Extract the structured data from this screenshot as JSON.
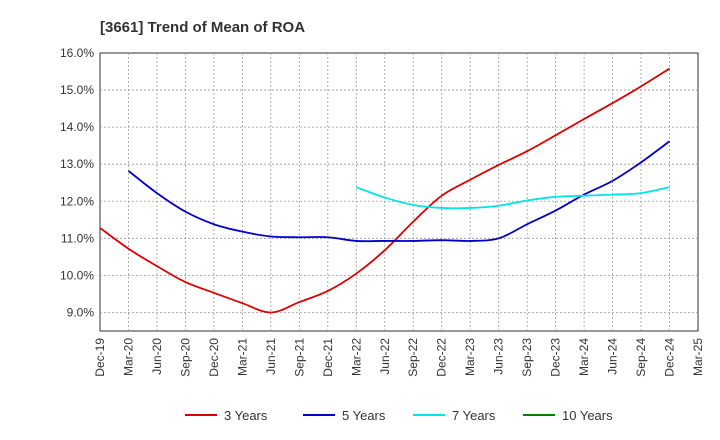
{
  "chart_data": {
    "type": "line",
    "title": "[3661]  Trend of Mean of ROA",
    "xlabel": "",
    "ylabel": "",
    "ylim": [
      8.5,
      16.0
    ],
    "yticks": [
      "9.0%",
      "10.0%",
      "11.0%",
      "12.0%",
      "13.0%",
      "14.0%",
      "15.0%",
      "16.0%"
    ],
    "categories": [
      "Dec-19",
      "Mar-20",
      "Jun-20",
      "Sep-20",
      "Dec-20",
      "Mar-21",
      "Jun-21",
      "Sep-21",
      "Dec-21",
      "Mar-22",
      "Jun-22",
      "Sep-22",
      "Dec-22",
      "Mar-23",
      "Jun-23",
      "Sep-23",
      "Dec-23",
      "Mar-24",
      "Jun-24",
      "Sep-24",
      "Dec-24",
      "Mar-25"
    ],
    "grid": true,
    "legend_position": "bottom",
    "series": [
      {
        "name": "3 Years",
        "color": "#dd0000",
        "values": [
          11.28,
          10.72,
          10.25,
          9.82,
          9.53,
          9.25,
          9.0,
          9.28,
          9.58,
          10.05,
          10.68,
          11.45,
          12.15,
          12.58,
          12.98,
          13.35,
          13.78,
          14.22,
          14.65,
          15.1,
          15.58,
          null
        ]
      },
      {
        "name": "5 Years",
        "color": "#0000cc",
        "values": [
          null,
          12.82,
          12.22,
          11.72,
          11.38,
          11.18,
          11.05,
          11.03,
          11.03,
          10.93,
          10.93,
          10.93,
          10.95,
          10.93,
          11.0,
          11.38,
          11.75,
          12.18,
          12.55,
          13.05,
          13.62,
          null
        ]
      },
      {
        "name": "7 Years",
        "color": "#00e5e5",
        "values": [
          null,
          null,
          null,
          null,
          null,
          null,
          null,
          null,
          null,
          12.38,
          12.1,
          11.9,
          11.82,
          11.82,
          11.88,
          12.02,
          12.12,
          12.15,
          12.18,
          12.22,
          12.38,
          null
        ]
      },
      {
        "name": "10 Years",
        "color": "#008000",
        "values": [
          null,
          null,
          null,
          null,
          null,
          null,
          null,
          null,
          null,
          null,
          null,
          null,
          null,
          null,
          null,
          null,
          null,
          null,
          null,
          null,
          null,
          null
        ]
      }
    ]
  }
}
